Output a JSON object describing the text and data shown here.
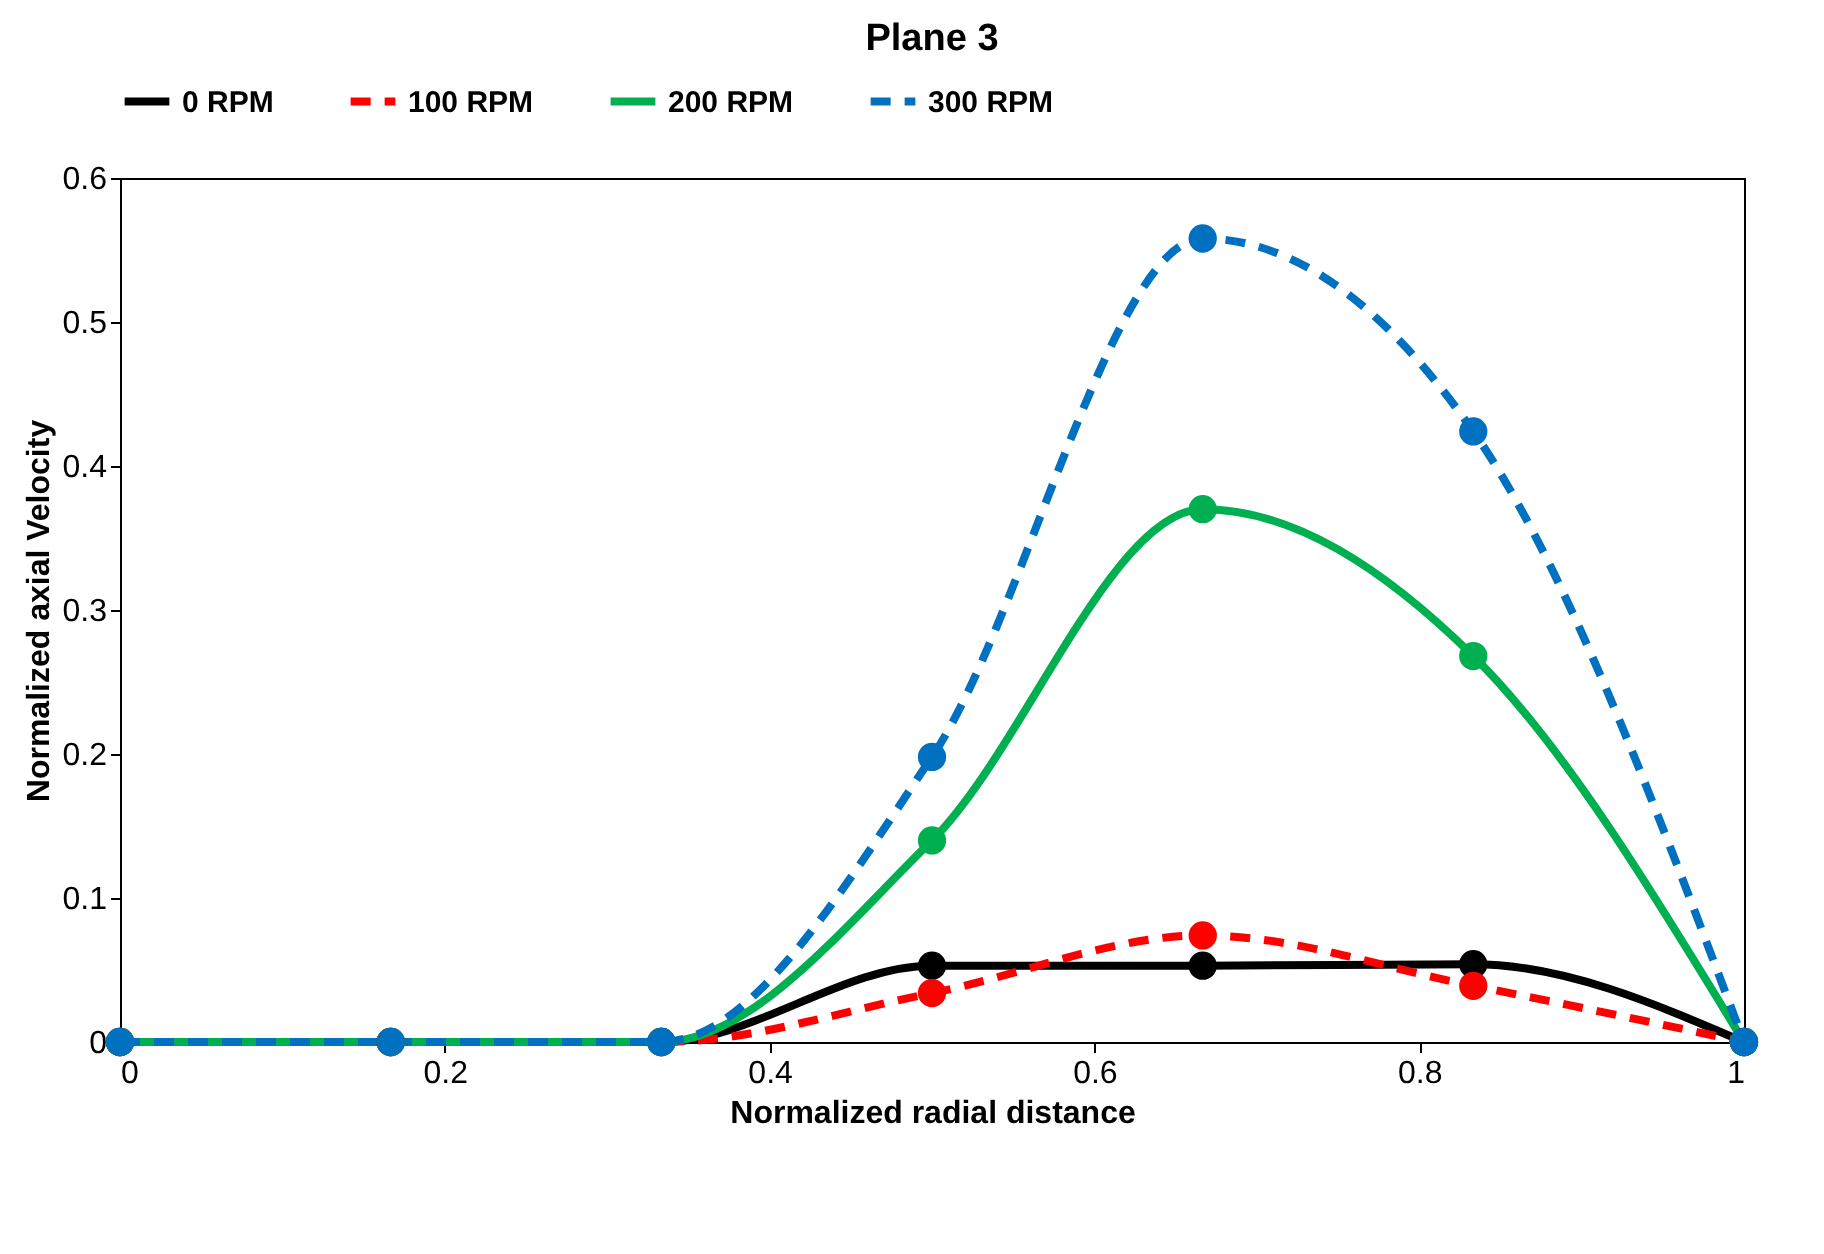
{
  "chart_data": {
    "type": "line",
    "title": "Plane 3",
    "xlabel": "Normalized radial distance",
    "ylabel": "Normalized axial Velocity",
    "x": [
      0,
      0.1667,
      0.3333,
      0.5,
      0.6667,
      0.8333,
      1
    ],
    "series": [
      {
        "name": "0 RPM",
        "color": "#000000",
        "line_style": "solid",
        "values": [
          0,
          0,
          0,
          0.053,
          0.053,
          0.054,
          0
        ]
      },
      {
        "name": "100 RPM",
        "color": "#ff0000",
        "line_style": "dashed",
        "values": [
          0,
          0,
          0,
          0.034,
          0.074,
          0.039,
          0
        ]
      },
      {
        "name": "200 RPM",
        "color": "#00b050",
        "line_style": "solid",
        "values": [
          0,
          0,
          0,
          0.14,
          0.37,
          0.268,
          0
        ]
      },
      {
        "name": "300 RPM",
        "color": "#0070c0",
        "line_style": "dashed",
        "values": [
          0,
          0,
          0,
          0.198,
          0.558,
          0.424,
          0
        ]
      }
    ],
    "xlim": [
      0,
      1
    ],
    "xticks": [
      0,
      0.2,
      0.4,
      0.6,
      0.8,
      1
    ],
    "ylim": [
      0,
      0.6
    ],
    "yticks": [
      0,
      0.1,
      0.2,
      0.3,
      0.4,
      0.5,
      0.6
    ],
    "grid": false,
    "legend": "top",
    "marker": "circle"
  }
}
